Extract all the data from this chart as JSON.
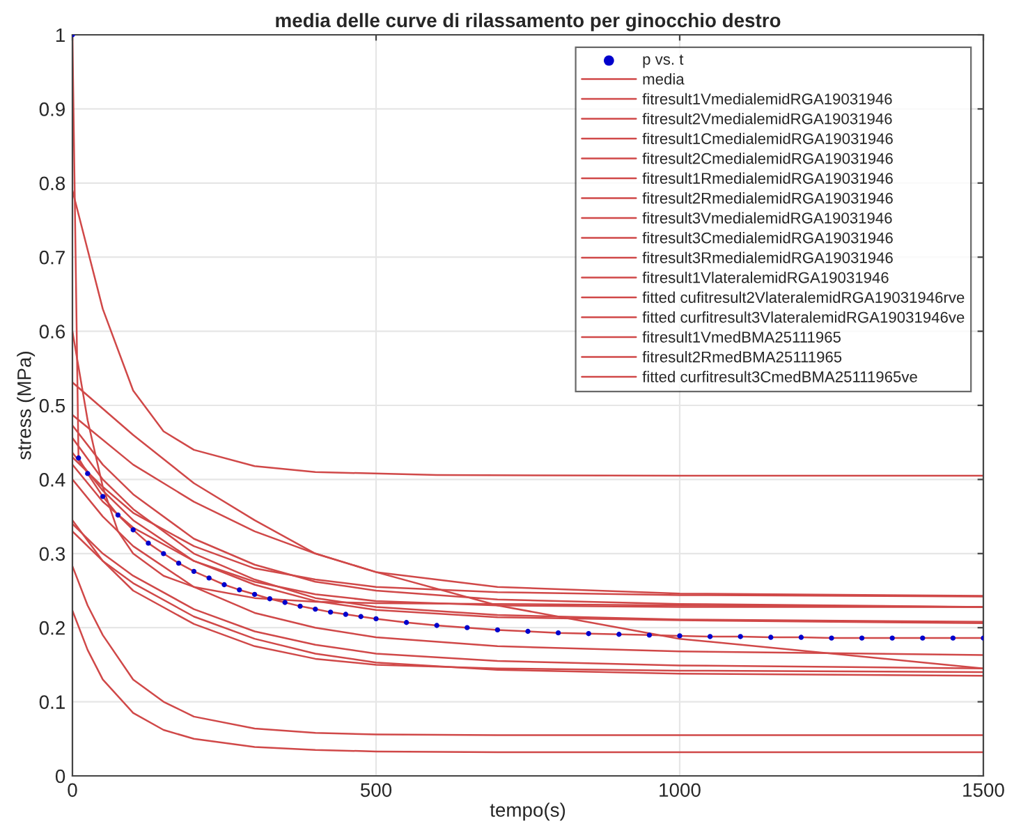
{
  "chart_data": {
    "type": "line",
    "title": "media delle curve di rilassamento per ginocchio destro",
    "xlabel": "tempo(s)",
    "ylabel": "stress (MPa)",
    "xlim": [
      0,
      1500
    ],
    "ylim": [
      0,
      1
    ],
    "xticks": [
      0,
      500,
      1000,
      1500
    ],
    "yticks": [
      0,
      0.1,
      0.2,
      0.3,
      0.4,
      0.5,
      0.6,
      0.7,
      0.8,
      0.9,
      1
    ],
    "grid": true,
    "legend": "top right",
    "series": [
      {
        "name": "p vs. t",
        "type": "scatter",
        "color": "#0000cc",
        "x": [
          0,
          10,
          25,
          50,
          75,
          100,
          125,
          150,
          175,
          200,
          225,
          250,
          275,
          300,
          325,
          350,
          375,
          400,
          425,
          450,
          475,
          500,
          550,
          600,
          650,
          700,
          750,
          800,
          850,
          900,
          950,
          1000,
          1050,
          1100,
          1150,
          1200,
          1250,
          1300,
          1350,
          1400,
          1450,
          1500
        ],
        "values": [
          1.0,
          0.429,
          0.408,
          0.377,
          0.352,
          0.332,
          0.314,
          0.3,
          0.287,
          0.276,
          0.267,
          0.258,
          0.251,
          0.245,
          0.239,
          0.234,
          0.229,
          0.225,
          0.221,
          0.218,
          0.215,
          0.212,
          0.207,
          0.203,
          0.2,
          0.197,
          0.195,
          0.193,
          0.192,
          0.191,
          0.19,
          0.189,
          0.188,
          0.188,
          0.187,
          0.187,
          0.186,
          0.186,
          0.186,
          0.186,
          0.186,
          0.186
        ]
      },
      {
        "name": "media",
        "color": "#d04848",
        "x": [
          0,
          10,
          25,
          50,
          75,
          100,
          125,
          150,
          175,
          200,
          225,
          250,
          275,
          300,
          325,
          350,
          375,
          400,
          425,
          450,
          475,
          500,
          550,
          600,
          650,
          700,
          750,
          800,
          850,
          900,
          950,
          1000,
          1050,
          1100,
          1150,
          1200,
          1250,
          1300,
          1350,
          1400,
          1450,
          1500
        ],
        "values": [
          1.0,
          0.429,
          0.408,
          0.377,
          0.352,
          0.332,
          0.314,
          0.3,
          0.287,
          0.276,
          0.267,
          0.258,
          0.251,
          0.245,
          0.239,
          0.234,
          0.229,
          0.225,
          0.221,
          0.218,
          0.215,
          0.212,
          0.207,
          0.203,
          0.2,
          0.197,
          0.195,
          0.193,
          0.192,
          0.191,
          0.19,
          0.189,
          0.188,
          0.188,
          0.187,
          0.187,
          0.186,
          0.186,
          0.186,
          0.186,
          0.186,
          0.186
        ]
      },
      {
        "name": "fitresult1VmedialemidRGA19031946",
        "color": "#d04848",
        "x": [
          0,
          50,
          100,
          150,
          200,
          300,
          400,
          600,
          1000,
          1500
        ],
        "values": [
          0.79,
          0.63,
          0.52,
          0.465,
          0.44,
          0.418,
          0.41,
          0.406,
          0.405,
          0.405
        ]
      },
      {
        "name": "fitresult2VmedialemidRGA19031946",
        "color": "#d04848",
        "x": [
          0,
          25,
          50,
          75,
          100,
          150,
          200,
          300,
          400,
          500,
          700,
          1000,
          1500
        ],
        "values": [
          0.6,
          0.48,
          0.39,
          0.33,
          0.3,
          0.27,
          0.255,
          0.24,
          0.235,
          0.233,
          0.232,
          0.23,
          0.228
        ]
      },
      {
        "name": "fitresult1CmedialemidRGA19031946",
        "color": "#d04848",
        "x": [
          0,
          100,
          200,
          300,
          400,
          500,
          700,
          1000,
          1500
        ],
        "values": [
          0.531,
          0.46,
          0.395,
          0.345,
          0.3,
          0.275,
          0.255,
          0.246,
          0.243
        ]
      },
      {
        "name": "fitresult2CmedialemidRGA19031946",
        "color": "#d04848",
        "x": [
          0,
          100,
          200,
          300,
          400,
          500,
          700,
          1000,
          1500
        ],
        "values": [
          0.487,
          0.42,
          0.37,
          0.33,
          0.3,
          0.275,
          0.23,
          0.185,
          0.145
        ]
      },
      {
        "name": "fitresult1RmedialemidRGA19031946",
        "color": "#d04848",
        "x": [
          0,
          50,
          100,
          200,
          300,
          400,
          500,
          700,
          1000,
          1500
        ],
        "values": [
          0.473,
          0.42,
          0.38,
          0.32,
          0.285,
          0.262,
          0.25,
          0.238,
          0.232,
          0.228
        ]
      },
      {
        "name": "fitresult2RmedialemidRGA19031946",
        "color": "#d04848",
        "x": [
          0,
          50,
          100,
          200,
          300,
          400,
          500,
          700,
          1000,
          1500
        ],
        "values": [
          0.456,
          0.4,
          0.36,
          0.3,
          0.265,
          0.24,
          0.228,
          0.217,
          0.211,
          0.208
        ]
      },
      {
        "name": "fitresult3VmedialemidRGA19031946",
        "color": "#d04848",
        "x": [
          0,
          50,
          100,
          200,
          300,
          400,
          500,
          700,
          1000,
          1500
        ],
        "values": [
          0.436,
          0.385,
          0.345,
          0.29,
          0.258,
          0.236,
          0.224,
          0.214,
          0.21,
          0.206
        ]
      },
      {
        "name": "fitresult3CmedialemidRGA19031946",
        "color": "#d04848",
        "x": [
          0,
          50,
          100,
          200,
          300,
          400,
          500,
          700,
          1000,
          1500
        ],
        "values": [
          0.42,
          0.37,
          0.335,
          0.29,
          0.262,
          0.245,
          0.236,
          0.23,
          0.228,
          0.228
        ]
      },
      {
        "name": "fitresult3RmedialemidRGA19031946",
        "color": "#d04848",
        "x": [
          0,
          50,
          100,
          200,
          300,
          400,
          500,
          700,
          1000,
          1500
        ],
        "values": [
          0.4,
          0.35,
          0.31,
          0.255,
          0.22,
          0.2,
          0.187,
          0.175,
          0.168,
          0.163
        ]
      },
      {
        "name": "fitresult1VlateralemidRGA19031946",
        "color": "#d04848",
        "x": [
          0,
          50,
          100,
          200,
          300,
          400,
          500,
          700,
          1000,
          1500
        ],
        "values": [
          0.34,
          0.3,
          0.27,
          0.225,
          0.195,
          0.177,
          0.165,
          0.155,
          0.149,
          0.145
        ]
      },
      {
        "name": "fitted cufitresult2VlateralemidRGA19031946rve",
        "color": "#d04848",
        "x": [
          0,
          50,
          100,
          200,
          300,
          400,
          500,
          700,
          1000,
          1500
        ],
        "values": [
          0.33,
          0.29,
          0.26,
          0.215,
          0.185,
          0.165,
          0.153,
          0.143,
          0.138,
          0.135
        ]
      },
      {
        "name": "fitted curfitresult3VlateralemidRGA19031946ve",
        "color": "#d04848",
        "x": [
          0,
          50,
          100,
          200,
          300,
          400,
          500,
          700,
          1000,
          1500
        ],
        "values": [
          0.345,
          0.29,
          0.25,
          0.205,
          0.175,
          0.158,
          0.15,
          0.145,
          0.142,
          0.14
        ]
      },
      {
        "name": "fitresult1VmedBMA25111965",
        "color": "#d04848",
        "x": [
          0,
          25,
          50,
          100,
          150,
          200,
          300,
          400,
          500,
          700,
          1000,
          1500
        ],
        "values": [
          0.283,
          0.23,
          0.19,
          0.13,
          0.1,
          0.08,
          0.064,
          0.058,
          0.056,
          0.055,
          0.055,
          0.055
        ]
      },
      {
        "name": "fitresult2RmedBMA25111965",
        "color": "#d04848",
        "x": [
          0,
          25,
          50,
          100,
          150,
          200,
          300,
          400,
          500,
          700,
          1000,
          1500
        ],
        "values": [
          0.223,
          0.17,
          0.13,
          0.085,
          0.062,
          0.05,
          0.039,
          0.035,
          0.033,
          0.032,
          0.032,
          0.032
        ]
      },
      {
        "name": "fitted curfitresult3CmedBMA25111965ve",
        "color": "#d04848",
        "x": [
          0,
          50,
          100,
          200,
          300,
          400,
          500,
          700,
          1000,
          1500
        ],
        "values": [
          0.43,
          0.39,
          0.355,
          0.31,
          0.28,
          0.265,
          0.255,
          0.248,
          0.244,
          0.242
        ]
      }
    ]
  }
}
